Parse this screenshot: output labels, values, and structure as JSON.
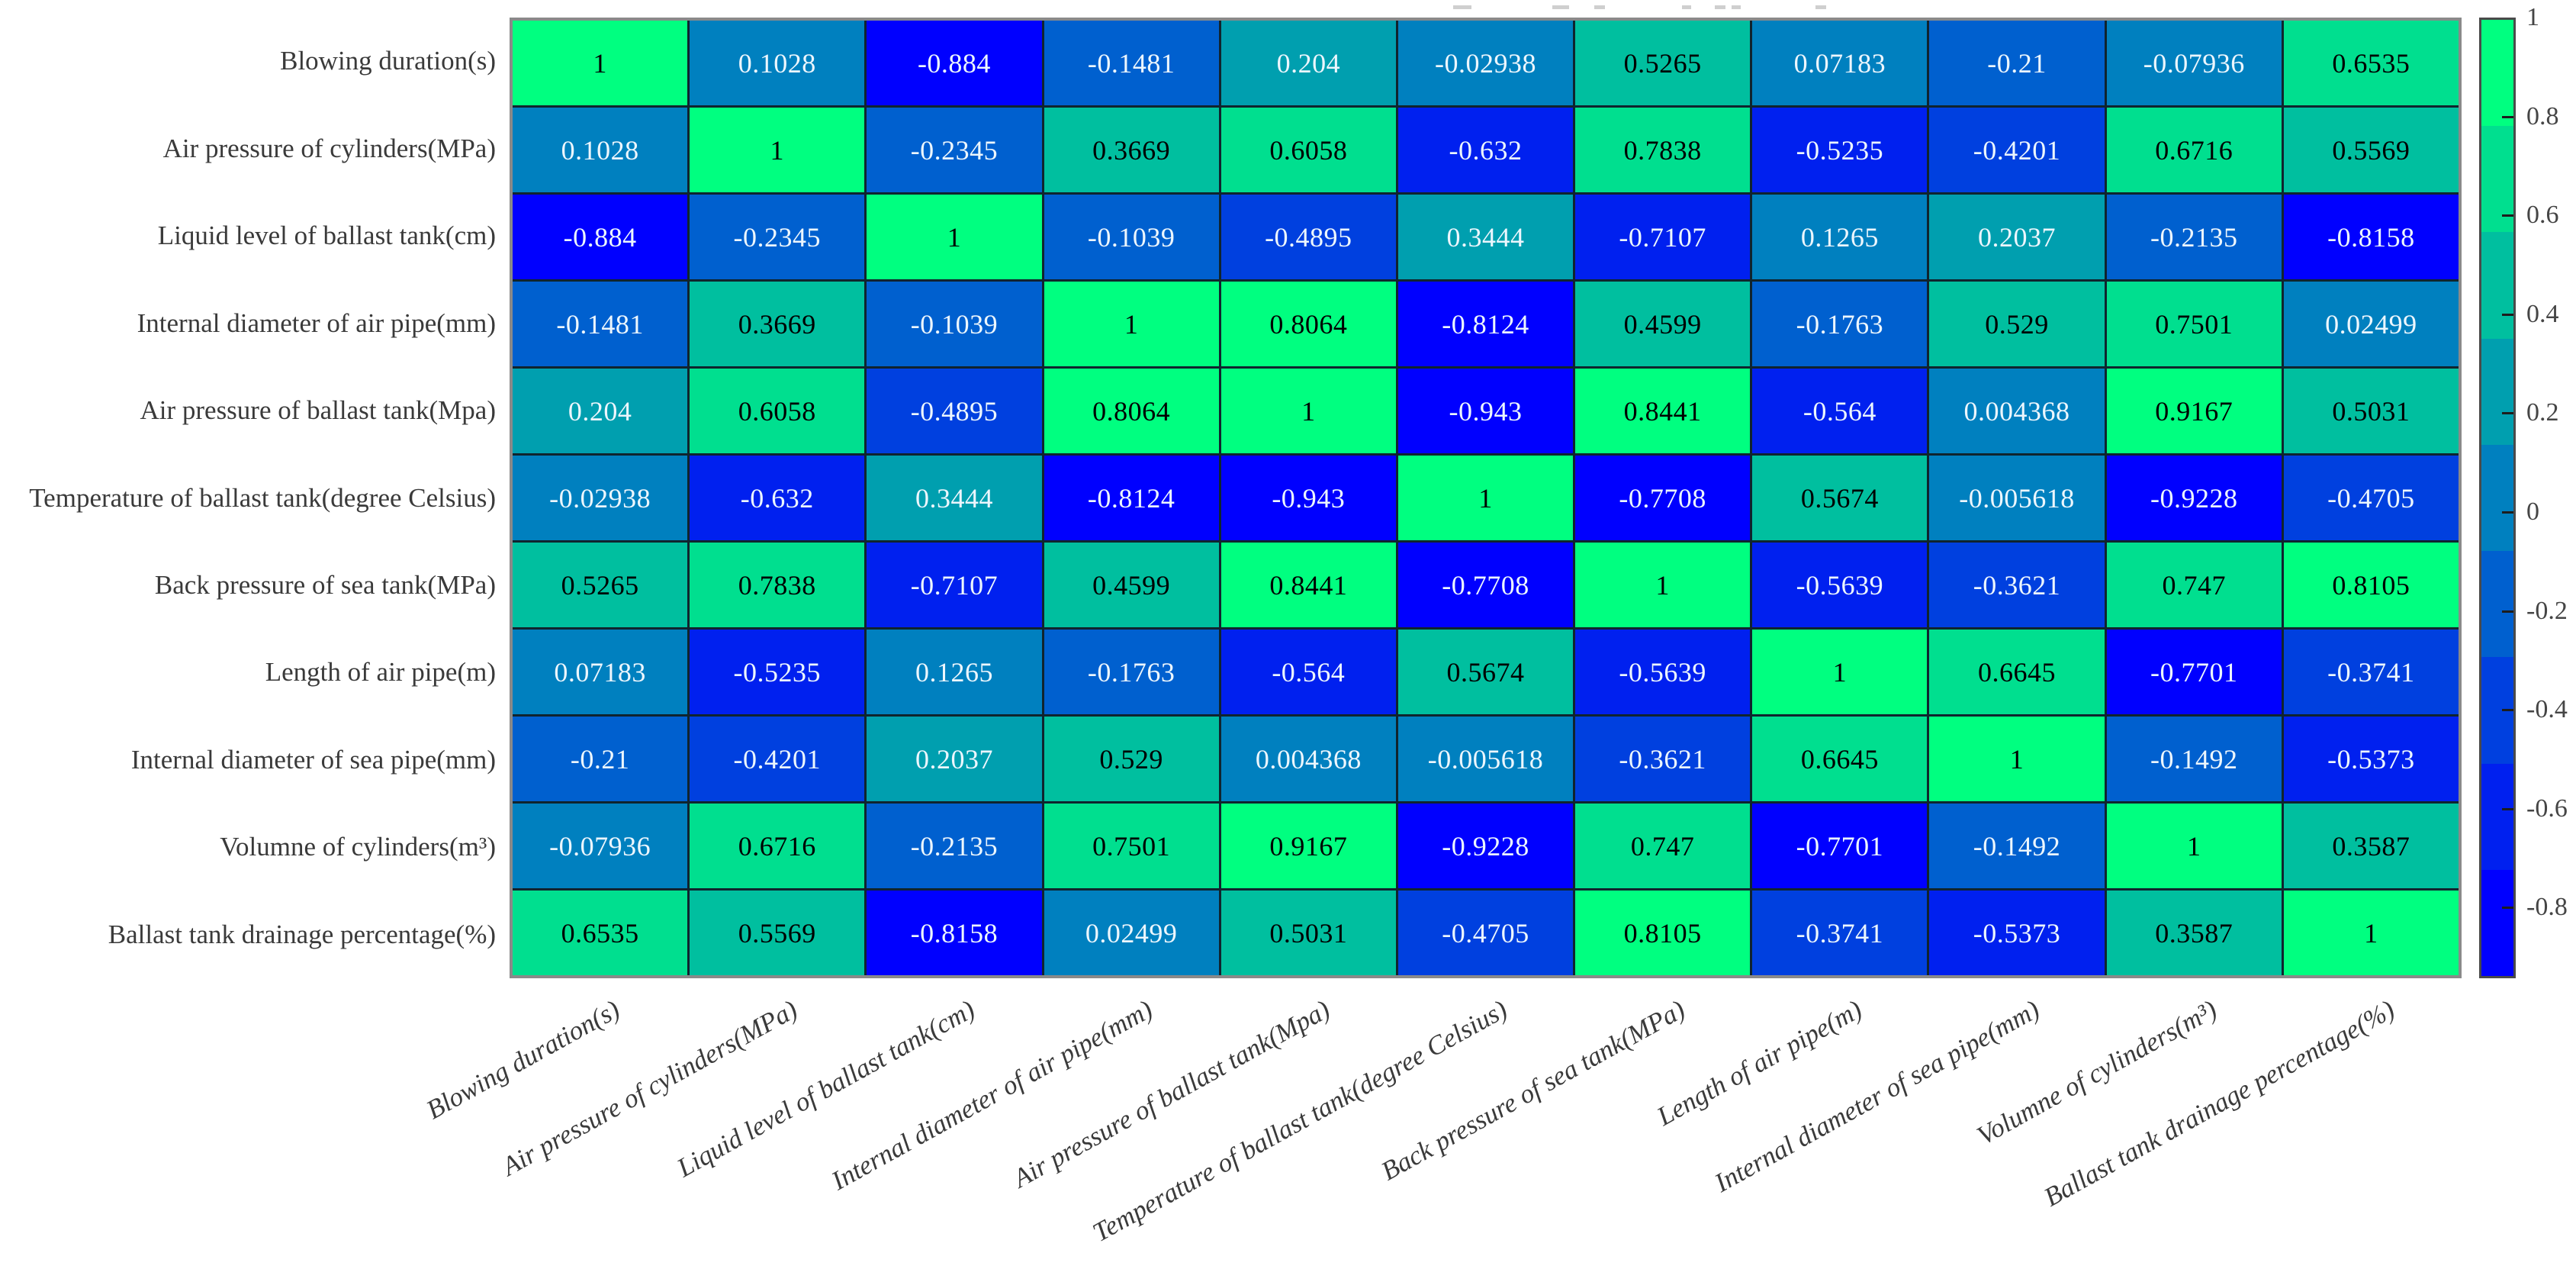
{
  "chart_data": {
    "type": "heatmap",
    "title": "",
    "title_clipped": true,
    "colormap": "winter",
    "grid": true,
    "variables": [
      "Blowing duration(s)",
      "Air pressure of cylinders(MPa)",
      "Liquid level of ballast tank(cm)",
      "Internal diameter of air pipe(mm)",
      "Air pressure of ballast tank(Mpa)",
      "Temperature of ballast tank(degree Celsius)",
      "Back pressure of sea tank(MPa)",
      "Length of air pipe(m)",
      "Internal diameter of sea pipe(mm)",
      "Volumne of cylinders(m³)",
      "Ballast tank drainage percentage(%)"
    ],
    "matrix": [
      [
        1,
        0.1028,
        -0.884,
        -0.1481,
        0.204,
        -0.02938,
        0.5265,
        0.07183,
        -0.21,
        -0.07936,
        0.6535
      ],
      [
        0.1028,
        1,
        -0.2345,
        0.3669,
        0.6058,
        -0.632,
        0.7838,
        -0.5235,
        -0.4201,
        0.6716,
        0.5569
      ],
      [
        -0.884,
        -0.2345,
        1,
        -0.1039,
        -0.4895,
        0.3444,
        -0.7107,
        0.1265,
        0.2037,
        -0.2135,
        -0.8158
      ],
      [
        -0.1481,
        0.3669,
        -0.1039,
        1,
        0.8064,
        -0.8124,
        0.4599,
        -0.1763,
        0.529,
        0.7501,
        0.02499
      ],
      [
        0.204,
        0.6058,
        -0.4895,
        0.8064,
        1,
        -0.943,
        0.8441,
        -0.564,
        0.004368,
        0.9167,
        0.5031
      ],
      [
        -0.02938,
        -0.632,
        0.3444,
        -0.8124,
        -0.943,
        1,
        -0.7708,
        0.5674,
        -0.005618,
        -0.9228,
        -0.4705
      ],
      [
        0.5265,
        0.7838,
        -0.7107,
        0.4599,
        0.8441,
        -0.7708,
        1,
        -0.5639,
        -0.3621,
        0.747,
        0.8105
      ],
      [
        0.07183,
        -0.5235,
        0.1265,
        -0.1763,
        -0.564,
        0.5674,
        -0.5639,
        1,
        0.6645,
        -0.7701,
        -0.3741
      ],
      [
        -0.21,
        -0.4201,
        0.2037,
        0.529,
        0.004368,
        -0.005618,
        -0.3621,
        0.6645,
        1,
        -0.1492,
        -0.5373
      ],
      [
        -0.07936,
        0.6716,
        -0.2135,
        0.7501,
        0.9167,
        -0.9228,
        0.747,
        -0.7701,
        -0.1492,
        1,
        0.3587
      ],
      [
        0.6535,
        0.5569,
        -0.8158,
        0.02499,
        0.5031,
        -0.4705,
        0.8105,
        -0.3741,
        -0.5373,
        0.3587,
        1
      ]
    ],
    "colorbar": {
      "position": "right",
      "vmin": -0.943,
      "vmax": 1,
      "n_colors": 9,
      "ticks": [
        1,
        0.8,
        0.6,
        0.4,
        0.2,
        0,
        -0.2,
        -0.4,
        -0.6,
        -0.8
      ],
      "colors_low_to_high": [
        "#0000FF",
        "#0020EF",
        "#0040DF",
        "#0060CF",
        "#0080BF",
        "#009FAF",
        "#00BF9F",
        "#00DF8F",
        "#00FF80"
      ]
    },
    "cell_text_dark": "#000000",
    "cell_text_light": "#ecf6fd",
    "grid_line_color": "#10242e",
    "axis_border_color": "#8a8a8a",
    "label_color": "#3a3a3a"
  }
}
